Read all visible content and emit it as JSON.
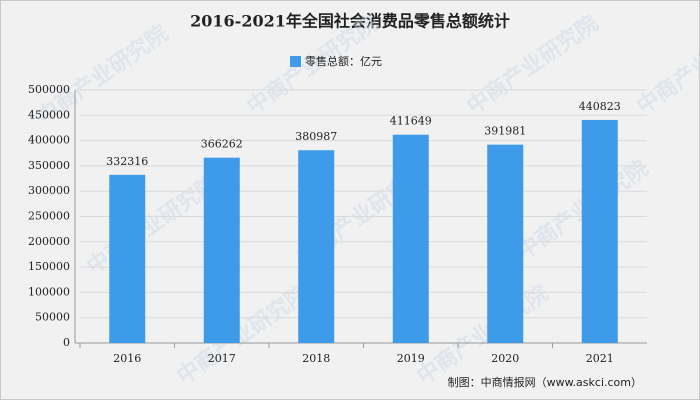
{
  "chart_data": {
    "type": "bar",
    "title": "2016-2021年全国社会消费品零售总额统计",
    "legend": "零售总额：亿元",
    "categories": [
      "2016",
      "2017",
      "2018",
      "2019",
      "2020",
      "2021"
    ],
    "values": [
      332316,
      366262,
      380987,
      411649,
      391981,
      440823
    ],
    "color": "#3d9be9",
    "ylim": [
      0,
      500000
    ],
    "yticks": [
      0,
      50000,
      100000,
      150000,
      200000,
      250000,
      300000,
      350000,
      400000,
      450000,
      500000
    ],
    "grid": true,
    "source": "制图：中商情报网（www.askci.com）",
    "watermark": "中商产业研究院"
  }
}
